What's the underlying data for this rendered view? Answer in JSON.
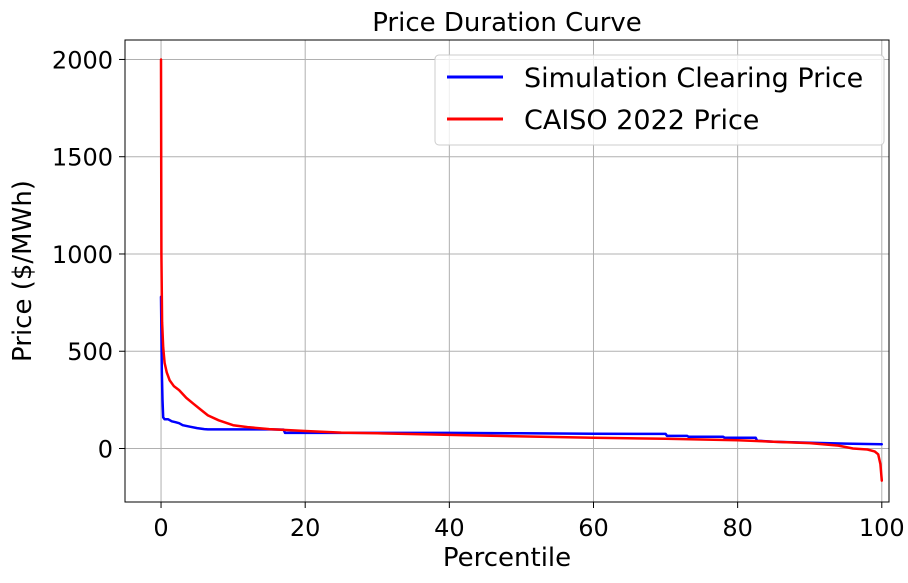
{
  "colors": {
    "simulation": "#0000ff",
    "caiso": "#ff0000",
    "grid": "#b0b0b0",
    "legend_border": "#cccccc"
  },
  "chart_data": {
    "type": "line",
    "title": "Price Duration Curve",
    "xlabel": "Percentile",
    "ylabel": "Price ($/MWh)",
    "xlim": [
      -5,
      101
    ],
    "ylim": [
      -275,
      2100
    ],
    "xticks": [
      0,
      20,
      40,
      60,
      80,
      100
    ],
    "xtick_labels": [
      "0",
      "20",
      "40",
      "60",
      "80",
      "100"
    ],
    "yticks": [
      0,
      500,
      1000,
      1500,
      2000
    ],
    "ytick_labels": [
      "0",
      "500",
      "1000",
      "1500",
      "2000"
    ],
    "grid": true,
    "legend_position": "top-right",
    "series": [
      {
        "name": "Simulation Clearing Price",
        "color": "#0000ff",
        "x": [
          0,
          0.05,
          0.1,
          0.2,
          0.3,
          0.5,
          1,
          1.5,
          2,
          2.5,
          3,
          4,
          5,
          6,
          6.5,
          10,
          15,
          17,
          17.2,
          20,
          25,
          30,
          40,
          50,
          60,
          70,
          70.2,
          73,
          73.2,
          78,
          78.2,
          82.5,
          82.7,
          85,
          90,
          95,
          100
        ],
        "y": [
          780,
          600,
          400,
          250,
          160,
          150,
          150,
          140,
          135,
          130,
          120,
          112,
          105,
          100,
          98,
          98,
          98,
          97,
          80,
          80,
          80,
          80,
          80,
          78,
          76,
          75,
          65,
          65,
          60,
          60,
          55,
          55,
          40,
          35,
          30,
          25,
          22
        ]
      },
      {
        "name": "CAISO 2022 Price",
        "color": "#ff0000",
        "x": [
          0,
          0.05,
          0.15,
          0.3,
          0.5,
          0.8,
          1.2,
          1.8,
          2.5,
          3.5,
          4.5,
          5.5,
          6.5,
          8,
          10,
          12,
          15,
          20,
          25,
          30,
          40,
          50,
          60,
          70,
          80,
          85,
          90,
          94,
          96,
          98,
          99,
          99.5,
          99.8,
          100
        ],
        "y": [
          2000,
          1000,
          650,
          520,
          440,
          390,
          350,
          320,
          300,
          260,
          230,
          200,
          170,
          145,
          120,
          110,
          100,
          90,
          82,
          78,
          70,
          62,
          55,
          50,
          42,
          35,
          28,
          15,
          0,
          -5,
          -15,
          -30,
          -80,
          -165
        ]
      }
    ]
  }
}
